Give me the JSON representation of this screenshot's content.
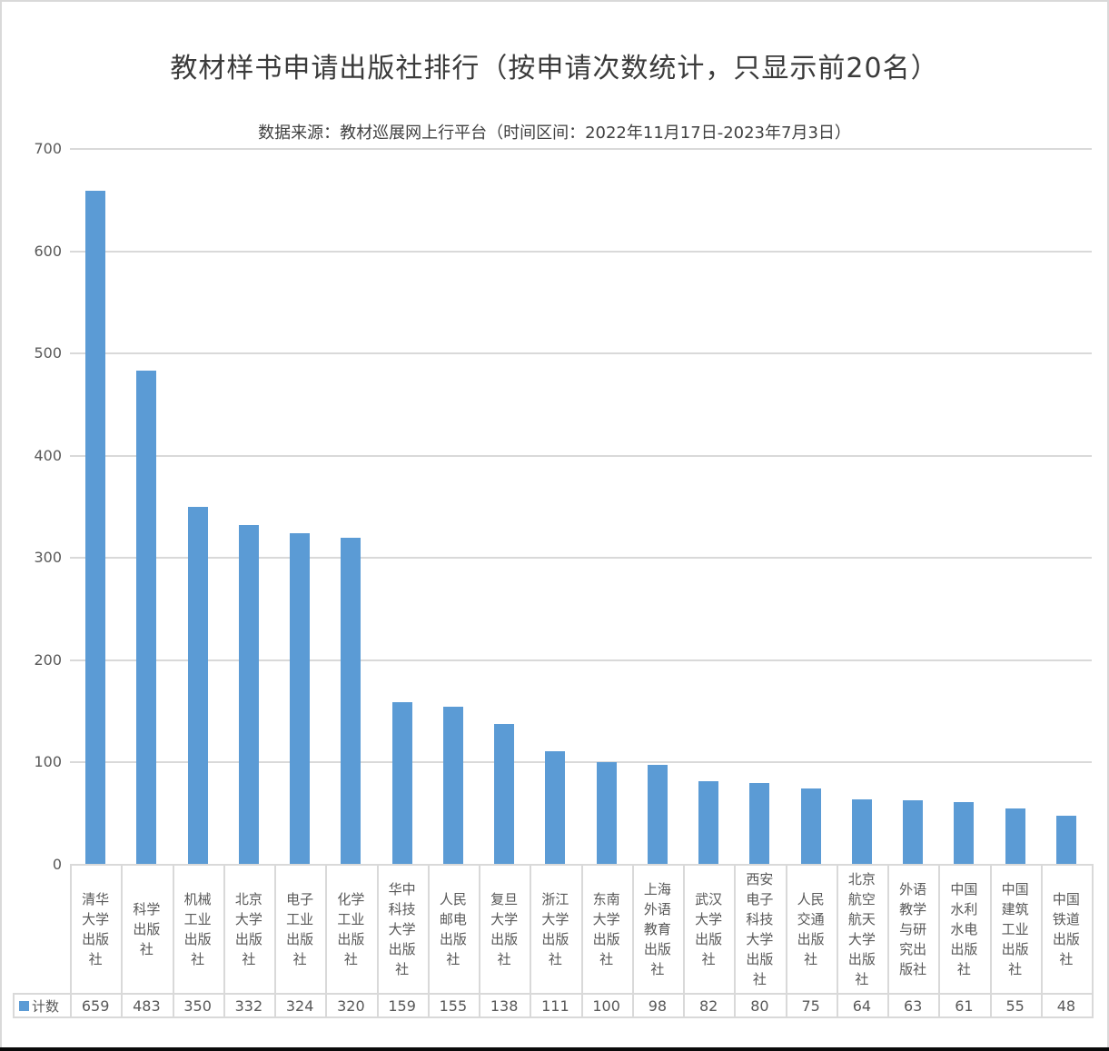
{
  "chart": {
    "title": "教材样书申请出版社排行（按申请次数统计，只显示前20名）",
    "subtitle": "数据来源：教材巡展网上行平台（时间区间：2022年11月17日-2023年7月3日）",
    "legend_label": "计数",
    "colors": {
      "bar": "#5b9bd5",
      "gridline": "#d9d9d9",
      "axis_text": "#595959",
      "title_text": "#3b3b3b",
      "table_border": "#d9d9d9"
    }
  },
  "chart_data": {
    "type": "bar",
    "title": "教材样书申请出版社排行（按申请次数统计，只显示前20名）",
    "subtitle": "数据来源：教材巡展网上行平台（时间区间：2022年11月17日-2023年7月3日）",
    "legend": [
      "计数"
    ],
    "legend_position": "bottom-left-of-data-table",
    "grid": true,
    "xlabel": "",
    "ylabel": "",
    "ylim": [
      0,
      700
    ],
    "ytick_interval": 100,
    "yticks": [
      0,
      100,
      200,
      300,
      400,
      500,
      600,
      700
    ],
    "categories": [
      "清华大学出版社",
      "科学出版社",
      "机械工业出版社",
      "北京大学出版社",
      "电子工业出版社",
      "化学工业出版社",
      "华中科技大学出版社",
      "人民邮电出版社",
      "复旦大学出版社",
      "浙江大学出版社",
      "东南大学出版社",
      "上海外语教育出版社",
      "武汉大学出版社",
      "西安电子科技大学出版社",
      "人民交通出版社",
      "北京航空航天大学出版社",
      "外语教学与研究出版社",
      "中国水利水电出版社",
      "中国建筑工业出版社",
      "中国铁道出版社"
    ],
    "series": [
      {
        "name": "计数",
        "values": [
          659,
          483,
          350,
          332,
          324,
          320,
          159,
          155,
          138,
          111,
          100,
          98,
          82,
          80,
          75,
          64,
          63,
          61,
          55,
          48
        ]
      }
    ]
  }
}
